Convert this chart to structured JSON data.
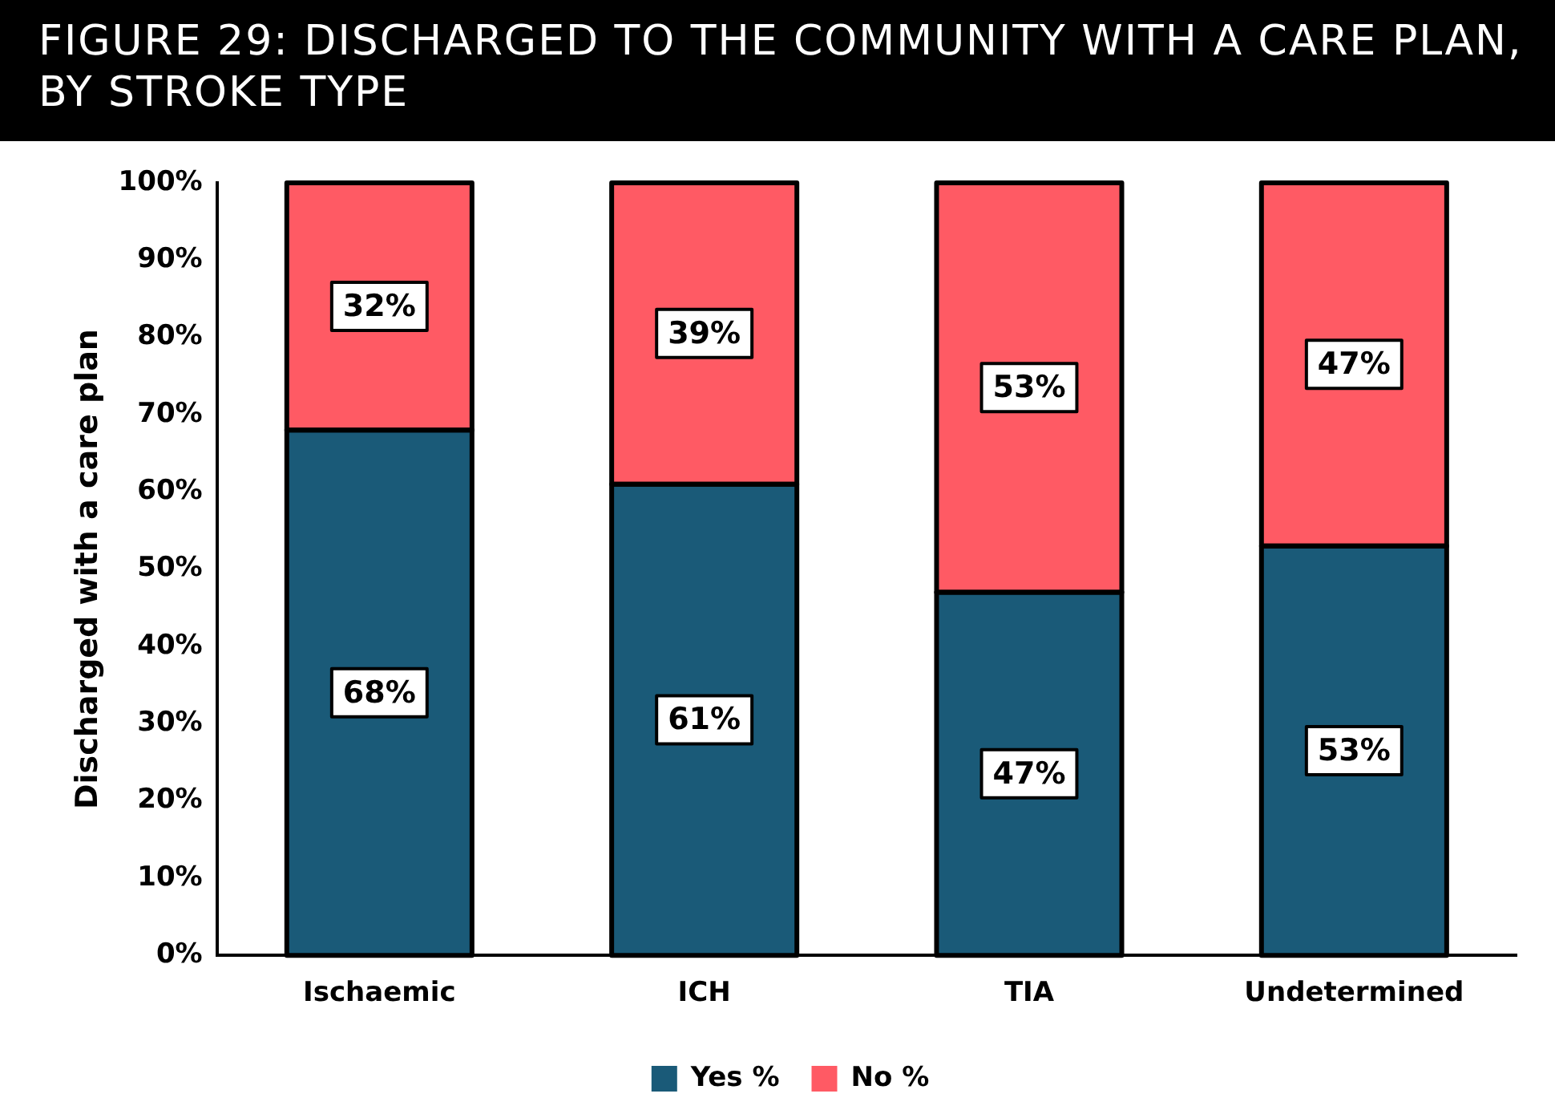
{
  "chart_data": {
    "type": "bar",
    "title": "FIGURE 29: DISCHARGED TO THE COMMUNITY WITH A CARE PLAN, BY STROKE TYPE",
    "ylabel": "Discharged with a care plan",
    "categories": [
      "Ischaemic",
      "ICH",
      "TIA",
      "Undetermined"
    ],
    "stacked": true,
    "series": [
      {
        "name": "Yes %",
        "color": "#1a5a78",
        "values": [
          68,
          61,
          47,
          53
        ],
        "value_labels": [
          "68%",
          "61%",
          "47%",
          "53%"
        ]
      },
      {
        "name": "No %",
        "color": "#ff5a64",
        "values": [
          32,
          39,
          53,
          47
        ],
        "value_labels": [
          "32%",
          "39%",
          "53%",
          "47%"
        ]
      }
    ],
    "ylim": [
      0,
      100
    ],
    "yticks": [
      {
        "value": 0,
        "label": "0%"
      },
      {
        "value": 10,
        "label": "10%"
      },
      {
        "value": 20,
        "label": "20%"
      },
      {
        "value": 30,
        "label": "30%"
      },
      {
        "value": 40,
        "label": "40%"
      },
      {
        "value": 50,
        "label": "50%"
      },
      {
        "value": 60,
        "label": "60%"
      },
      {
        "value": 70,
        "label": "70%"
      },
      {
        "value": 80,
        "label": "80%"
      },
      {
        "value": 90,
        "label": "90%"
      },
      {
        "value": 100,
        "label": "100%"
      }
    ],
    "grid": false,
    "legend": "bottom"
  }
}
